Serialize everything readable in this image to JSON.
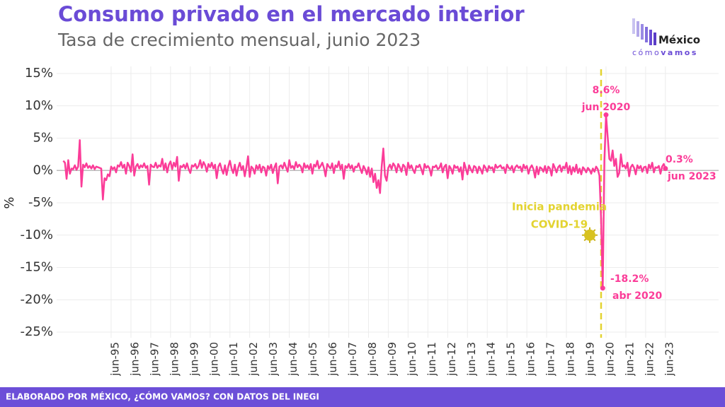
{
  "chart_data": {
    "type": "line",
    "title": "Consumo privado en el mercado interior",
    "subtitle": "Tasa de crecimiento mensual, junio 2023",
    "y_label": "%",
    "footer": "ELABORADO POR MÉXICO, ¿CÓMO VAMOS? CON DATOS DEL INEGI",
    "logo": {
      "name": "México",
      "tagline_a": "cómo",
      "tagline_b": "vamos"
    },
    "categories": [
      null,
      null,
      null,
      null,
      null,
      null,
      null,
      null,
      null,
      null,
      null,
      null,
      null,
      null,
      null,
      null,
      null,
      null,
      null,
      null,
      null,
      null,
      null,
      null,
      null,
      null,
      null,
      null,
      null,
      "jun-95",
      null,
      null,
      null,
      null,
      null,
      null,
      null,
      null,
      null,
      null,
      null,
      "jun-96",
      null,
      null,
      null,
      null,
      null,
      null,
      null,
      null,
      null,
      null,
      null,
      "jun-97",
      null,
      null,
      null,
      null,
      null,
      null,
      null,
      null,
      null,
      null,
      null,
      "jun-98",
      null,
      null,
      null,
      null,
      null,
      null,
      null,
      null,
      null,
      null,
      null,
      "jun-99",
      null,
      null,
      null,
      null,
      null,
      null,
      null,
      null,
      null,
      null,
      null,
      "jun-00",
      null,
      null,
      null,
      null,
      null,
      null,
      null,
      null,
      null,
      null,
      null,
      "jun-01",
      null,
      null,
      null,
      null,
      null,
      null,
      null,
      null,
      null,
      null,
      null,
      "jun-02",
      null,
      null,
      null,
      null,
      null,
      null,
      null,
      null,
      null,
      null,
      null,
      "jun-03",
      null,
      null,
      null,
      null,
      null,
      null,
      null,
      null,
      null,
      null,
      null,
      "jun-04",
      null,
      null,
      null,
      null,
      null,
      null,
      null,
      null,
      null,
      null,
      null,
      "jun-05",
      null,
      null,
      null,
      null,
      null,
      null,
      null,
      null,
      null,
      null,
      null,
      "jun-06",
      null,
      null,
      null,
      null,
      null,
      null,
      null,
      null,
      null,
      null,
      null,
      "jun-07",
      null,
      null,
      null,
      null,
      null,
      null,
      null,
      null,
      null,
      null,
      null,
      "jun-08",
      null,
      null,
      null,
      null,
      null,
      null,
      null,
      null,
      null,
      null,
      null,
      "jun-09",
      null,
      null,
      null,
      null,
      null,
      null,
      null,
      null,
      null,
      null,
      null,
      "jun-10",
      null,
      null,
      null,
      null,
      null,
      null,
      null,
      null,
      null,
      null,
      null,
      "jun-11",
      null,
      null,
      null,
      null,
      null,
      null,
      null,
      null,
      null,
      null,
      null,
      "jun-12",
      null,
      null,
      null,
      null,
      null,
      null,
      null,
      null,
      null,
      null,
      null,
      "jun-13",
      null,
      null,
      null,
      null,
      null,
      null,
      null,
      null,
      null,
      null,
      null,
      "jun-14",
      null,
      null,
      null,
      null,
      null,
      null,
      null,
      null,
      null,
      null,
      null,
      "jun-15",
      null,
      null,
      null,
      null,
      null,
      null,
      null,
      null,
      null,
      null,
      null,
      "jun-16",
      null,
      null,
      null,
      null,
      null,
      null,
      null,
      null,
      null,
      null,
      null,
      "jun-17",
      null,
      null,
      null,
      null,
      null,
      null,
      null,
      null,
      null,
      null,
      null,
      "jun-18",
      null,
      null,
      null,
      null,
      null,
      null,
      null,
      null,
      null,
      null,
      null,
      "jun-19",
      null,
      null,
      null,
      null,
      null,
      null,
      null,
      null,
      null,
      null,
      null,
      "jun-20",
      null,
      null,
      null,
      null,
      null,
      null,
      null,
      null,
      null,
      null,
      null,
      "jun-21",
      null,
      null,
      null,
      null,
      null,
      null,
      null,
      null,
      null,
      null,
      null,
      "jun-22",
      null,
      null,
      null,
      null,
      null,
      null,
      null,
      null,
      null,
      null,
      null,
      "jun-23"
    ],
    "values": [
      1.5,
      1.2,
      -1.3,
      1.6,
      -0.5,
      0.3,
      0.2,
      0.8,
      0.1,
      0.6,
      4.7,
      -2.5,
      0.9,
      0.5,
      1.1,
      0.4,
      0.7,
      0.3,
      0.8,
      0.2,
      0.6,
      0.5,
      0.4,
      0.3,
      -4.5,
      -1.2,
      -1.5,
      -0.6,
      -0.9,
      0.6,
      0.2,
      0.5,
      -0.3,
      0.8,
      0.6,
      1.3,
      0.4,
      0.9,
      -0.5,
      1.2,
      0.7,
      -0.2,
      2.5,
      -0.8,
      0.6,
      1.0,
      0.3,
      0.8,
      0.5,
      1.1,
      0.4,
      0.7,
      -2.2,
      0.9,
      0.6,
      0.5,
      1.2,
      0.4,
      0.8,
      0.6,
      1.8,
      0.1,
      1.1,
      -0.3,
      0.9,
      1.4,
      0.2,
      1.2,
      0.6,
      2.1,
      -1.6,
      0.7,
      0.5,
      0.9,
      0.3,
      1.1,
      0.2,
      -0.4,
      0.8,
      0.6,
      1.0,
      0.3,
      0.7,
      1.6,
      0.4,
      1.3,
      0.8,
      -0.2,
      1.0,
      0.5,
      1.2,
      0.3,
      0.9,
      -1.2,
      0.6,
      1.1,
      0.2,
      -0.5,
      0.8,
      -0.7,
      0.6,
      1.5,
      0.3,
      -0.4,
      0.9,
      -0.8,
      0.4,
      1.2,
      0.1,
      0.7,
      -0.9,
      0.5,
      2.2,
      -1.0,
      0.6,
      0.3,
      -0.5,
      0.8,
      0.2,
      0.9,
      -0.3,
      0.6,
      0.4,
      -0.8,
      0.7,
      0.2,
      0.9,
      -0.4,
      0.5,
      1.1,
      -2.0,
      0.6,
      0.8,
      0.3,
      1.2,
      0.5,
      -0.2,
      1.6,
      0.4,
      0.7,
      0.2,
      1.3,
      0.5,
      0.9,
      0.6,
      -0.3,
      1.1,
      0.4,
      0.8,
      0.2,
      1.0,
      -0.5,
      0.9,
      0.6,
      1.5,
      0.3,
      0.7,
      1.2,
      0.4,
      -0.9,
      1.0,
      0.6,
      0.3,
      1.1,
      -0.4,
      0.8,
      0.5,
      1.4,
      0.2,
      0.9,
      -1.3,
      0.7,
      0.4,
      1.0,
      0.3,
      0.8,
      -0.2,
      0.6,
      0.5,
      1.1,
      0.3,
      -0.4,
      0.7,
      0.2,
      -0.6,
      0.5,
      -1.0,
      0.3,
      -1.8,
      -0.5,
      -2.7,
      -1.5,
      -3.5,
      0.6,
      3.4,
      -0.8,
      -1.6,
      0.4,
      0.9,
      0.2,
      1.1,
      0.7,
      -0.3,
      1.0,
      0.5,
      -0.2,
      0.9,
      0.6,
      -0.7,
      1.2,
      0.3,
      0.8,
      0.1,
      -0.4,
      0.7,
      0.5,
      0.9,
      0.2,
      -0.6,
      1.0,
      0.4,
      0.7,
      0.3,
      -0.8,
      0.6,
      0.5,
      0.8,
      0.2,
      0.4,
      1.1,
      -0.3,
      0.6,
      0.9,
      -1.2,
      0.7,
      0.3,
      -0.5,
      0.8,
      0.4,
      0.6,
      -0.2,
      0.5,
      -1.4,
      1.2,
      0.3,
      -0.6,
      0.8,
      0.2,
      -0.3,
      0.7,
      0.5,
      -0.4,
      0.6,
      0.2,
      -0.5,
      0.8,
      0.4,
      -0.2,
      0.7,
      0.3,
      0.5,
      -0.3,
      0.9,
      0.4,
      0.6,
      0.8,
      0.3,
      0.5,
      -0.4,
      0.9,
      0.4,
      0.2,
      0.7,
      -0.3,
      0.5,
      0.8,
      0.4,
      0.6,
      -0.2,
      0.9,
      0.3,
      0.7,
      -0.5,
      0.4,
      0.8,
      0.2,
      -1.1,
      0.6,
      -0.6,
      0.5,
      0.3,
      -0.2,
      0.7,
      -0.4,
      0.6,
      0.3,
      -0.8,
      1.0,
      0.4,
      -0.3,
      0.5,
      0.8,
      -0.2,
      0.6,
      0.3,
      1.2,
      -0.4,
      0.7,
      -0.6,
      0.5,
      -0.2,
      0.9,
      -0.4,
      0.3,
      -0.6,
      0.5,
      0.2,
      -0.3,
      0.4,
      0.1,
      -0.5,
      0.3,
      -0.2,
      0.6,
      0.2,
      -0.8,
      -7.5,
      -18.2,
      1.5,
      8.6,
      5.2,
      1.8,
      1.5,
      3.1,
      0.7,
      1.8,
      -1.0,
      -0.4,
      2.5,
      0.6,
      0.8,
      0.3,
      1.2,
      -0.9,
      0.5,
      0.9,
      0.4,
      -0.6,
      0.8,
      0.3,
      0.7,
      -0.2,
      0.5,
      0.6,
      -0.4,
      0.9,
      0.3,
      1.2,
      -0.3,
      0.5,
      0.4,
      0.7,
      -0.5,
      0.6,
      1.0,
      0.3
    ],
    "color": "#fb3c98",
    "highlights": {
      "max": {
        "value_label": "8.6%",
        "date": "jun 2020"
      },
      "min": {
        "value_label": "-18.2%",
        "date": "abr 2020"
      },
      "last": {
        "value_label": "0.3%",
        "date": "jun 2023"
      }
    },
    "event": {
      "lines": [
        "Inicia pandemia",
        "COVID-19"
      ],
      "color": "#e3d330"
    },
    "ylim": [
      -25,
      15
    ],
    "yticks": [
      {
        "value": -25,
        "label": "-25%"
      },
      {
        "value": -20,
        "label": "-20%"
      },
      {
        "value": -15,
        "label": "-15%"
      },
      {
        "value": -10,
        "label": "-10%"
      },
      {
        "value": -5,
        "label": "-5%"
      },
      {
        "value": 0,
        "label": "0%"
      },
      {
        "value": 5,
        "label": "5%"
      },
      {
        "value": 10,
        "label": "10%"
      },
      {
        "value": 15,
        "label": "15%"
      }
    ],
    "grid": true
  }
}
